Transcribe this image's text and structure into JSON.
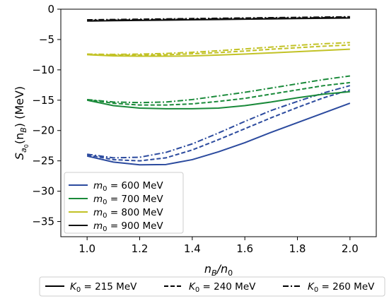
{
  "chart_data": {
    "type": "line",
    "xlabel_main": "n",
    "xlabel_sub1": "B",
    "xlabel_mid": "/n",
    "xlabel_sub2": "0",
    "ylabel_pre": "S",
    "ylabel_sub": "a",
    "ylabel_subsub": "0",
    "ylabel_mid": "(n",
    "ylabel_sub2": "B",
    "ylabel_post": ") (MeV)",
    "xlim": [
      0.9,
      2.1
    ],
    "ylim": [
      -37.5,
      0
    ],
    "xticks": [
      1.0,
      1.2,
      1.4,
      1.6,
      1.8,
      2.0
    ],
    "xtick_labels": [
      "1.0",
      "1.2",
      "1.4",
      "1.6",
      "1.8",
      "2.0"
    ],
    "yticks": [
      0,
      -5,
      -10,
      -15,
      -20,
      -25,
      -30,
      -35
    ],
    "ytick_labels": [
      "0",
      "−5",
      "−10",
      "−15",
      "−20",
      "−25",
      "−30",
      "−35"
    ],
    "x": [
      1.0,
      1.1,
      1.2,
      1.3,
      1.4,
      1.5,
      1.6,
      1.7,
      1.8,
      1.9,
      2.0
    ],
    "legend_colors": [
      {
        "sym": "m",
        "sub": "0",
        "text": " = 600 MeV",
        "color": "#2b4a9e"
      },
      {
        "sym": "m",
        "sub": "0",
        "text": " = 700 MeV",
        "color": "#1a8a3a"
      },
      {
        "sym": "m",
        "sub": "0",
        "text": " = 800 MeV",
        "color": "#c2c226"
      },
      {
        "sym": "m",
        "sub": "0",
        "text": " = 900 MeV",
        "color": "#111111"
      }
    ],
    "legend_styles": [
      {
        "sym": "K",
        "sub": "0",
        "text": " = 215 MeV",
        "dash": "solid"
      },
      {
        "sym": "K",
        "sub": "0",
        "text": " = 240 MeV",
        "dash": "dashed"
      },
      {
        "sym": "K",
        "sub": "0",
        "text": " = 260 MeV",
        "dash": "dashdot"
      }
    ],
    "series": [
      {
        "m0": 600,
        "K0": 215,
        "color": "#2b4a9e",
        "dash": "solid",
        "values": [
          -24.2,
          -25.2,
          -25.65,
          -25.6,
          -24.8,
          -23.5,
          -22.0,
          -20.3,
          -18.7,
          -17.1,
          -15.5
        ]
      },
      {
        "m0": 600,
        "K0": 240,
        "color": "#2b4a9e",
        "dash": "dashed",
        "values": [
          -24.0,
          -24.8,
          -25.0,
          -24.5,
          -23.2,
          -21.5,
          -19.7,
          -17.9,
          -16.2,
          -14.6,
          -13.3
        ]
      },
      {
        "m0": 600,
        "K0": 260,
        "color": "#2b4a9e",
        "dash": "dashdot",
        "values": [
          -23.9,
          -24.5,
          -24.4,
          -23.6,
          -22.2,
          -20.4,
          -18.5,
          -16.7,
          -15.2,
          -13.8,
          -12.6
        ]
      },
      {
        "m0": 700,
        "K0": 215,
        "color": "#1a8a3a",
        "dash": "solid",
        "values": [
          -15.0,
          -15.9,
          -16.3,
          -16.4,
          -16.4,
          -16.3,
          -15.9,
          -15.3,
          -14.6,
          -14.0,
          -13.6
        ]
      },
      {
        "m0": 700,
        "K0": 240,
        "color": "#1a8a3a",
        "dash": "dashed",
        "values": [
          -14.9,
          -15.5,
          -15.8,
          -15.8,
          -15.6,
          -15.2,
          -14.7,
          -14.0,
          -13.3,
          -12.6,
          -12.1
        ]
      },
      {
        "m0": 700,
        "K0": 260,
        "color": "#1a8a3a",
        "dash": "dashdot",
        "values": [
          -14.9,
          -15.3,
          -15.4,
          -15.3,
          -14.9,
          -14.3,
          -13.7,
          -13.0,
          -12.3,
          -11.6,
          -11.0
        ]
      },
      {
        "m0": 800,
        "K0": 215,
        "color": "#c2c226",
        "dash": "solid",
        "values": [
          -7.5,
          -7.7,
          -7.75,
          -7.75,
          -7.7,
          -7.55,
          -7.4,
          -7.2,
          -7.0,
          -6.8,
          -6.6
        ]
      },
      {
        "m0": 800,
        "K0": 240,
        "color": "#c2c226",
        "dash": "dashed",
        "values": [
          -7.45,
          -7.55,
          -7.55,
          -7.5,
          -7.35,
          -7.15,
          -6.9,
          -6.6,
          -6.35,
          -6.1,
          -5.9
        ]
      },
      {
        "m0": 800,
        "K0": 260,
        "color": "#c2c226",
        "dash": "dashdot",
        "values": [
          -7.4,
          -7.45,
          -7.4,
          -7.3,
          -7.1,
          -6.85,
          -6.55,
          -6.25,
          -5.95,
          -5.7,
          -5.5
        ]
      },
      {
        "m0": 900,
        "K0": 215,
        "color": "#111111",
        "dash": "solid",
        "values": [
          -1.95,
          -1.9,
          -1.85,
          -1.8,
          -1.75,
          -1.7,
          -1.65,
          -1.6,
          -1.55,
          -1.5,
          -1.45
        ]
      },
      {
        "m0": 900,
        "K0": 240,
        "color": "#111111",
        "dash": "dashed",
        "values": [
          -1.85,
          -1.8,
          -1.75,
          -1.7,
          -1.65,
          -1.6,
          -1.55,
          -1.5,
          -1.45,
          -1.4,
          -1.35
        ]
      },
      {
        "m0": 900,
        "K0": 260,
        "color": "#111111",
        "dash": "dashdot",
        "values": [
          -1.75,
          -1.7,
          -1.65,
          -1.6,
          -1.55,
          -1.5,
          -1.45,
          -1.4,
          -1.35,
          -1.3,
          -1.25
        ]
      }
    ]
  }
}
